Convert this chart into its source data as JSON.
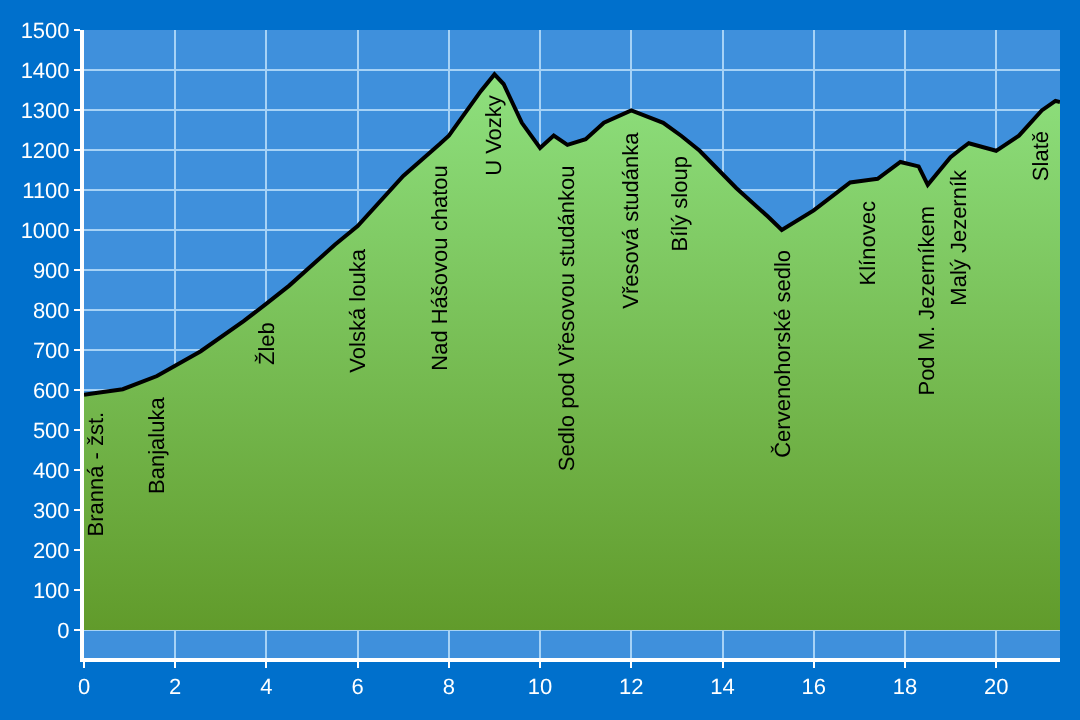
{
  "chart_data": {
    "type": "area",
    "xlim": [
      0,
      21.4
    ],
    "ylim": [
      -70,
      1500
    ],
    "xticks": [
      0,
      2,
      4,
      6,
      8,
      10,
      12,
      14,
      16,
      18,
      20
    ],
    "yticks": [
      0,
      100,
      200,
      300,
      400,
      500,
      600,
      700,
      800,
      900,
      1000,
      1100,
      1200,
      1300,
      1400,
      1500
    ],
    "grid": true,
    "series": [
      {
        "color": "#8ee07e",
        "x": [
          0,
          0.3,
          0.85,
          1.6,
          2.56,
          3.5,
          4.0,
          4.5,
          5.5,
          6.0,
          7.0,
          7.8,
          8.0,
          8.7,
          9.0,
          9.2,
          9.6,
          10.0,
          10.3,
          10.6,
          11.0,
          11.4,
          12.0,
          12.7,
          13.1,
          13.5,
          14.3,
          15.0,
          15.3,
          16.0,
          16.8,
          17.2,
          17.4,
          17.9,
          18.3,
          18.5,
          19.0,
          19.2,
          19.4,
          20.0,
          20.5,
          21.0,
          21.3,
          21.4
        ],
        "values": [
          588,
          593,
          602,
          635,
          697,
          772,
          816,
          861,
          963,
          1010,
          1135,
          1215,
          1236,
          1347,
          1389,
          1365,
          1268,
          1205,
          1236,
          1213,
          1227,
          1268,
          1299,
          1268,
          1235,
          1198,
          1105,
          1033,
          1000,
          1049,
          1119,
          1125,
          1128,
          1170,
          1159,
          1113,
          1182,
          1200,
          1217,
          1198,
          1236,
          1299,
          1323,
          1320
        ]
      }
    ],
    "annotations": [
      {
        "text": "Branná - žst.",
        "x": 0.3,
        "y": 593
      },
      {
        "text": "Banjaluka",
        "x": 1.6,
        "y": 635
      },
      {
        "text": "Žleb",
        "x": 4.0,
        "y": 816
      },
      {
        "text": "Volská louka",
        "x": 6.0,
        "y": 1010
      },
      {
        "text": "Nad Hášovou chatou",
        "x": 7.8,
        "y": 1215
      },
      {
        "text": "U Vozky",
        "x": 9.0,
        "y": 1389
      },
      {
        "text": "Sedlo pod Vřesovou studánkou",
        "x": 10.6,
        "y": 1213
      },
      {
        "text": "Vřesová studánka",
        "x": 12.0,
        "y": 1299
      },
      {
        "text": "Bílý sloup",
        "x": 13.1,
        "y": 1235
      },
      {
        "text": "Červenohorské sedlo",
        "x": 15.3,
        "y": 1000
      },
      {
        "text": "Klínovec",
        "x": 17.2,
        "y": 1125
      },
      {
        "text": "Pod M. Jezerníkem",
        "x": 18.5,
        "y": 1113
      },
      {
        "text": "Malý Jezerník",
        "x": 19.2,
        "y": 1200
      },
      {
        "text": "Slatě",
        "x": 21.0,
        "y": 1299
      }
    ]
  }
}
